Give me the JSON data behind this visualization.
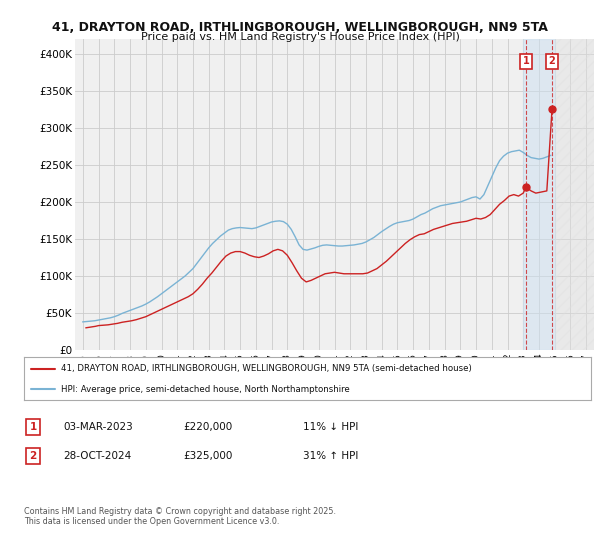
{
  "title_line1": "41, DRAYTON ROAD, IRTHLINGBOROUGH, WELLINGBOROUGH, NN9 5TA",
  "title_line2": "Price paid vs. HM Land Registry's House Price Index (HPI)",
  "background_color": "#ffffff",
  "grid_color": "#cccccc",
  "plot_bg_color": "#f0f0f0",
  "hpi_color": "#7ab3d4",
  "price_color": "#cc2222",
  "ylim": [
    0,
    420000
  ],
  "yticks": [
    0,
    50000,
    100000,
    150000,
    200000,
    250000,
    300000,
    350000,
    400000
  ],
  "ytick_labels": [
    "£0",
    "£50K",
    "£100K",
    "£150K",
    "£200K",
    "£250K",
    "£300K",
    "£350K",
    "£400K"
  ],
  "xlim_start": 1994.5,
  "xlim_end": 2027.5,
  "highlight_start": 2023.0,
  "highlight_end": 2025.0,
  "future_start": 2025.0,
  "transactions": [
    {
      "year": 2023.17,
      "price": 220000,
      "label": "1"
    },
    {
      "year": 2024.83,
      "price": 325000,
      "label": "2"
    }
  ],
  "legend_entries": [
    "41, DRAYTON ROAD, IRTHLINGBOROUGH, WELLINGBOROUGH, NN9 5TA (semi-detached house)",
    "HPI: Average price, semi-detached house, North Northamptonshire"
  ],
  "annotation1_date": "03-MAR-2023",
  "annotation1_price": "£220,000",
  "annotation1_hpi": "11% ↓ HPI",
  "annotation2_date": "28-OCT-2024",
  "annotation2_price": "£325,000",
  "annotation2_hpi": "31% ↑ HPI",
  "footer": "Contains HM Land Registry data © Crown copyright and database right 2025.\nThis data is licensed under the Open Government Licence v3.0.",
  "hpi_years": [
    1995,
    1995.25,
    1995.5,
    1995.75,
    1996,
    1996.25,
    1996.5,
    1996.75,
    1997,
    1997.25,
    1997.5,
    1997.75,
    1998,
    1998.25,
    1998.5,
    1998.75,
    1999,
    1999.25,
    1999.5,
    1999.75,
    2000,
    2000.25,
    2000.5,
    2000.75,
    2001,
    2001.25,
    2001.5,
    2001.75,
    2002,
    2002.25,
    2002.5,
    2002.75,
    2003,
    2003.25,
    2003.5,
    2003.75,
    2004,
    2004.25,
    2004.5,
    2004.75,
    2005,
    2005.25,
    2005.5,
    2005.75,
    2006,
    2006.25,
    2006.5,
    2006.75,
    2007,
    2007.25,
    2007.5,
    2007.75,
    2008,
    2008.25,
    2008.5,
    2008.75,
    2009,
    2009.25,
    2009.5,
    2009.75,
    2010,
    2010.25,
    2010.5,
    2010.75,
    2011,
    2011.25,
    2011.5,
    2011.75,
    2012,
    2012.25,
    2012.5,
    2012.75,
    2013,
    2013.25,
    2013.5,
    2013.75,
    2014,
    2014.25,
    2014.5,
    2014.75,
    2015,
    2015.25,
    2015.5,
    2015.75,
    2016,
    2016.25,
    2016.5,
    2016.75,
    2017,
    2017.25,
    2017.5,
    2017.75,
    2018,
    2018.25,
    2018.5,
    2018.75,
    2019,
    2019.25,
    2019.5,
    2019.75,
    2020,
    2020.25,
    2020.5,
    2020.75,
    2021,
    2021.25,
    2021.5,
    2021.75,
    2022,
    2022.25,
    2022.5,
    2022.75,
    2023,
    2023.25,
    2023.5,
    2023.75,
    2024,
    2024.25,
    2024.5,
    2024.75
  ],
  "hpi_values": [
    38000,
    38500,
    39000,
    39500,
    40500,
    41500,
    42500,
    43500,
    45000,
    47000,
    49500,
    51500,
    53500,
    55500,
    57500,
    59500,
    62000,
    65000,
    68500,
    72000,
    76000,
    80000,
    84000,
    88000,
    92000,
    96000,
    100000,
    105000,
    110000,
    117000,
    124000,
    131000,
    138000,
    144000,
    149000,
    154000,
    158000,
    162000,
    164000,
    165000,
    165500,
    165000,
    164500,
    164000,
    165000,
    167000,
    169000,
    171000,
    173000,
    174000,
    174500,
    173500,
    170000,
    163000,
    153000,
    142000,
    136000,
    135000,
    136500,
    138000,
    140000,
    141500,
    142000,
    141500,
    141000,
    140500,
    140500,
    141000,
    141500,
    142000,
    143000,
    144000,
    146000,
    149000,
    152000,
    156000,
    160000,
    163500,
    167000,
    170000,
    172000,
    173000,
    174000,
    175000,
    177000,
    180000,
    183000,
    185000,
    188000,
    191000,
    193000,
    195000,
    196000,
    197000,
    198000,
    199000,
    200000,
    202000,
    204000,
    206000,
    207000,
    204000,
    210000,
    222000,
    234000,
    246000,
    256000,
    262000,
    266000,
    268000,
    269000,
    270000,
    267000,
    263000,
    260000,
    259000,
    258000,
    259000,
    261000,
    263000
  ],
  "price_years": [
    1995.2,
    1995.5,
    1995.8,
    1996.0,
    1996.3,
    1996.6,
    1996.9,
    1997.2,
    1997.5,
    1997.8,
    1998.1,
    1998.4,
    1998.7,
    1999.0,
    1999.3,
    1999.6,
    1999.9,
    2000.2,
    2000.5,
    2000.8,
    2001.1,
    2001.4,
    2001.7,
    2002.0,
    2002.3,
    2002.6,
    2002.9,
    2003.2,
    2003.5,
    2003.8,
    2004.1,
    2004.4,
    2004.7,
    2005.0,
    2005.3,
    2005.6,
    2005.9,
    2006.2,
    2006.5,
    2006.8,
    2007.1,
    2007.4,
    2007.7,
    2008.0,
    2008.3,
    2008.6,
    2008.9,
    2009.2,
    2009.5,
    2009.8,
    2010.1,
    2010.4,
    2010.7,
    2011.0,
    2011.3,
    2011.6,
    2011.9,
    2012.2,
    2012.5,
    2012.8,
    2013.1,
    2013.4,
    2013.7,
    2014.0,
    2014.3,
    2014.6,
    2014.9,
    2015.2,
    2015.5,
    2015.8,
    2016.1,
    2016.4,
    2016.7,
    2017.0,
    2017.3,
    2017.6,
    2017.9,
    2018.2,
    2018.5,
    2018.8,
    2019.1,
    2019.4,
    2019.7,
    2020.0,
    2020.3,
    2020.6,
    2020.9,
    2021.2,
    2021.5,
    2021.8,
    2022.1,
    2022.4,
    2022.7,
    2023.0,
    2023.17,
    2023.5,
    2023.8,
    2024.5,
    2024.83
  ],
  "price_values": [
    30000,
    31000,
    32000,
    33000,
    33500,
    34000,
    35000,
    36000,
    37500,
    38500,
    39500,
    41000,
    43000,
    45000,
    48000,
    51000,
    54000,
    57000,
    60000,
    63000,
    66000,
    69000,
    72000,
    76000,
    82000,
    89000,
    97000,
    104000,
    112000,
    120000,
    127000,
    131000,
    133000,
    133000,
    131000,
    128000,
    126000,
    125000,
    127000,
    130000,
    134000,
    136000,
    134000,
    128000,
    118000,
    107000,
    97000,
    92000,
    94000,
    97000,
    100000,
    103000,
    104000,
    105000,
    104000,
    103000,
    103000,
    103000,
    103000,
    103000,
    104000,
    107000,
    110000,
    115000,
    120000,
    126000,
    132000,
    138000,
    144000,
    149000,
    153000,
    156000,
    157000,
    160000,
    163000,
    165000,
    167000,
    169000,
    171000,
    172000,
    173000,
    174000,
    176000,
    178000,
    177000,
    179000,
    183000,
    190000,
    197000,
    202000,
    208000,
    210000,
    208000,
    212000,
    220000,
    215000,
    212000,
    215000,
    325000
  ]
}
